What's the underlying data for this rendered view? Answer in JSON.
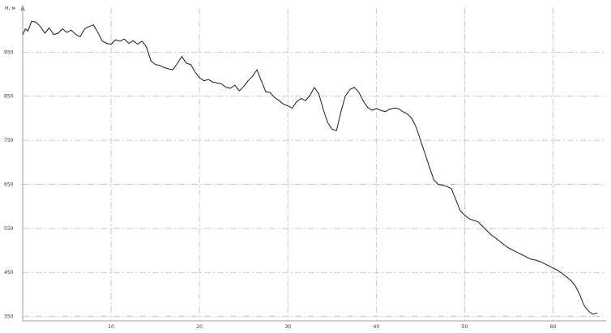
{
  "chart_data": {
    "type": "line",
    "title": "",
    "ylabel": "H, м",
    "xlabel": "",
    "xlim": [
      0,
      66
    ],
    "ylim": [
      340,
      1050
    ],
    "grid": true,
    "x_ticks": [
      10,
      20,
      30,
      40,
      50,
      60
    ],
    "y_ticks": [
      350,
      450,
      550,
      650,
      750,
      850,
      950
    ],
    "x_tick_labels": [
      "10",
      "20",
      "30",
      "40",
      "50",
      "60"
    ],
    "y_tick_labels": [
      "350",
      "450",
      "550",
      "650",
      "750",
      "850",
      "950"
    ],
    "series": [
      {
        "color": "#1a1a1a",
        "x": [
          0.0,
          0.3,
          0.6,
          1.0,
          1.5,
          2.0,
          2.5,
          3.0,
          3.5,
          4.0,
          4.5,
          5.0,
          5.5,
          6.0,
          6.5,
          7.0,
          7.5,
          8.0,
          8.5,
          9.0,
          9.5,
          10.0,
          10.5,
          11.0,
          11.5,
          12.0,
          12.5,
          13.0,
          13.5,
          14.0,
          14.5,
          15.0,
          15.5,
          16.0,
          16.5,
          17.0,
          17.5,
          18.0,
          18.5,
          19.0,
          19.5,
          20.0,
          20.5,
          21.0,
          21.5,
          22.0,
          22.5,
          23.0,
          23.5,
          24.0,
          24.5,
          25.0,
          25.5,
          26.0,
          26.5,
          27.0,
          27.5,
          28.0,
          28.5,
          29.0,
          29.5,
          30.0,
          30.5,
          31.0,
          31.5,
          32.0,
          32.5,
          33.0,
          33.5,
          34.0,
          34.5,
          35.0,
          35.5,
          36.0,
          36.5,
          37.0,
          37.5,
          38.0,
          38.5,
          39.0,
          39.5,
          40.0,
          40.5,
          41.0,
          41.5,
          42.0,
          42.5,
          43.0,
          43.5,
          44.0,
          44.5,
          45.0,
          45.5,
          46.0,
          46.5,
          47.0,
          47.5,
          48.0,
          48.5,
          49.0,
          49.5,
          50.0,
          50.5,
          51.0,
          51.5,
          52.0,
          52.5,
          53.0,
          53.5,
          54.0,
          54.5,
          55.0,
          55.5,
          56.0,
          56.5,
          57.0,
          57.5,
          58.0,
          58.5,
          59.0,
          59.5,
          60.0,
          60.5,
          61.0,
          61.5,
          62.0,
          62.5,
          63.0,
          63.5,
          64.0,
          64.5,
          65.0
        ],
        "y": [
          990,
          1003,
          998,
          1020,
          1018,
          1008,
          993,
          1005,
          990,
          993,
          1003,
          995,
          1000,
          990,
          985,
          1003,
          1008,
          1012,
          995,
          975,
          970,
          968,
          978,
          975,
          980,
          970,
          976,
          968,
          975,
          962,
          930,
          922,
          920,
          915,
          912,
          910,
          925,
          940,
          925,
          922,
          905,
          892,
          885,
          888,
          882,
          880,
          878,
          870,
          868,
          875,
          862,
          872,
          885,
          895,
          910,
          885,
          860,
          858,
          847,
          840,
          832,
          828,
          823,
          838,
          845,
          840,
          852,
          870,
          855,
          820,
          790,
          775,
          772,
          815,
          850,
          865,
          870,
          860,
          840,
          825,
          818,
          822,
          818,
          815,
          820,
          823,
          822,
          815,
          810,
          800,
          780,
          750,
          720,
          690,
          660,
          650,
          648,
          645,
          640,
          615,
          590,
          580,
          572,
          568,
          565,
          555,
          545,
          535,
          528,
          520,
          512,
          505,
          500,
          495,
          490,
          485,
          480,
          478,
          475,
          470,
          465,
          460,
          455,
          448,
          440,
          432,
          420,
          400,
          375,
          362,
          355,
          358
        ]
      }
    ]
  }
}
